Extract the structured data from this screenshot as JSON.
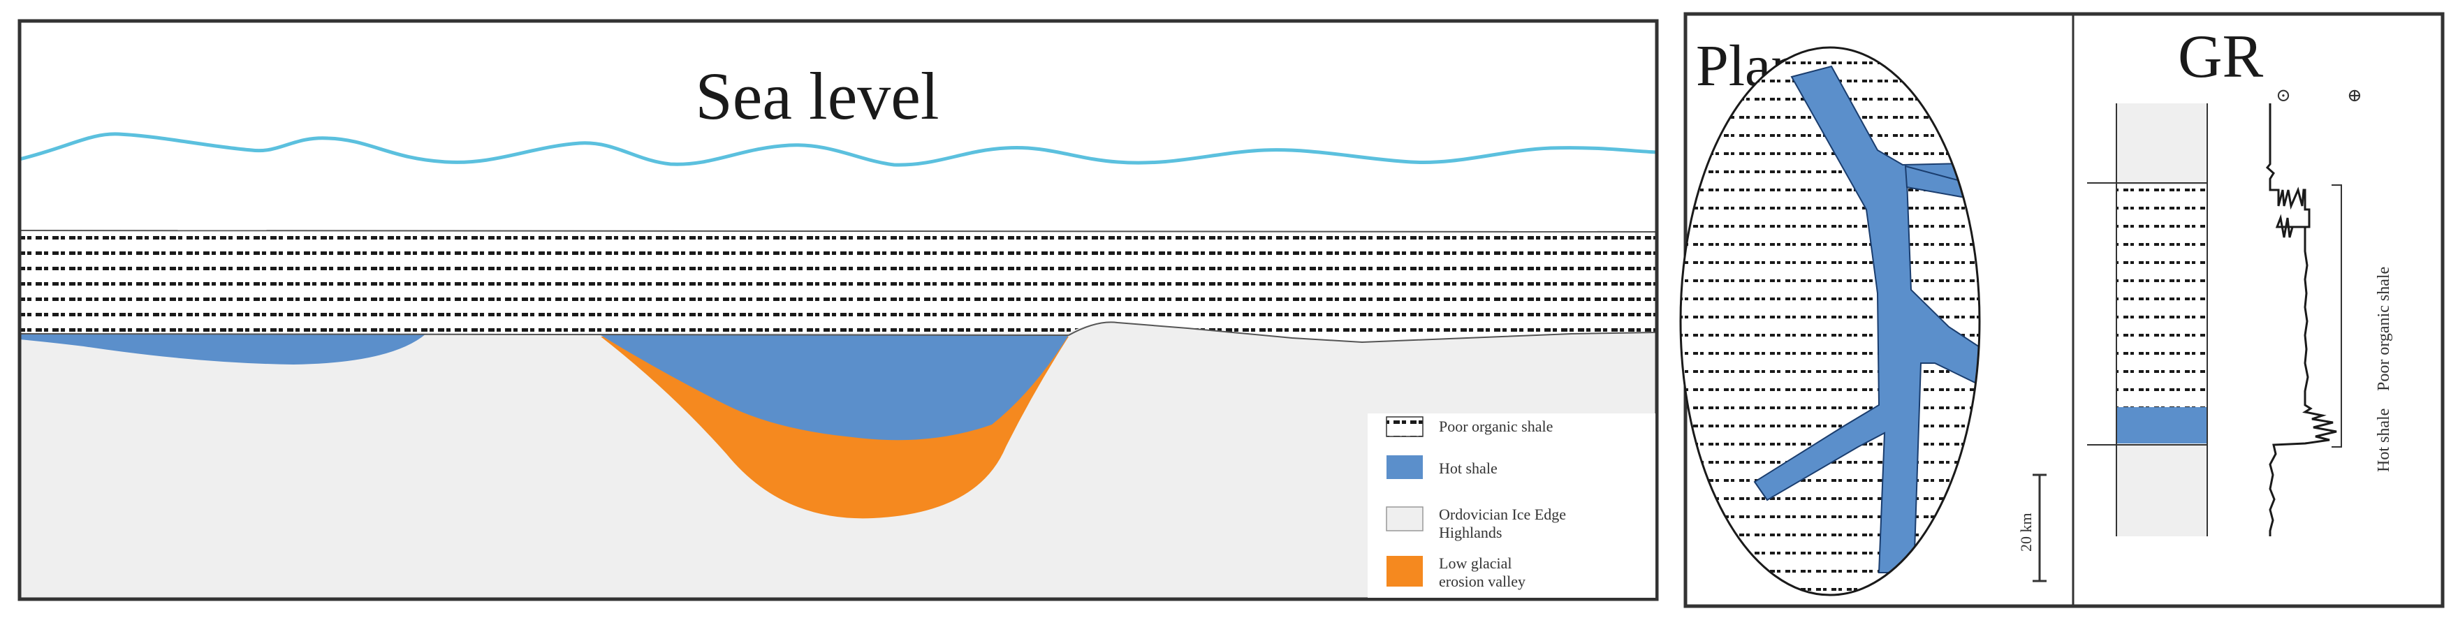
{
  "cross_section": {
    "title": "Sea level",
    "legend": [
      {
        "label": "Poor organic shale",
        "pattern": "dots"
      },
      {
        "label": "Hot shale",
        "color": "#5b8fcb"
      },
      {
        "label_lines": [
          "Ordovician Ice Edge",
          "Highlands"
        ],
        "color": "#efefef"
      },
      {
        "label_lines": [
          "Low glacial",
          "erosion valley"
        ],
        "color": "#f5891f"
      }
    ]
  },
  "plan_panel": {
    "title": "Plan",
    "scale_label": "20 km"
  },
  "gr_panel": {
    "title": "GR",
    "poor_organic_label": "Poor organic shale",
    "hot_shale_label": "Hot shale",
    "marker_left": "⊙",
    "marker_right": "⊕"
  },
  "colors": {
    "sea": "#5bc0de",
    "hot_shale": "#5b8fcb",
    "valley": "#f5891f",
    "highland": "#efefef",
    "frame": "#333333"
  }
}
